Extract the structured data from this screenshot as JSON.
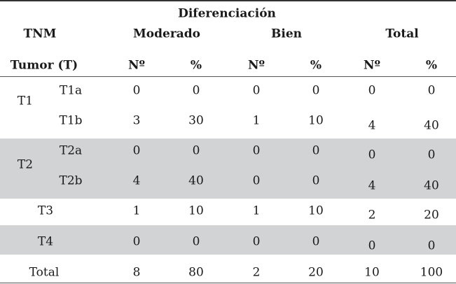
{
  "header": {
    "group_title": "Diferenciación",
    "tnm": "TNM",
    "moderado": "Moderado",
    "bien": "Bien",
    "total": "Total",
    "tumor": "Tumor (T)",
    "no": "Nº",
    "pct": "%"
  },
  "rows": {
    "t1": {
      "label": "T1",
      "t1a": "T1a",
      "t1b": "T1b",
      "a": [
        "0",
        "0",
        "0",
        "0",
        "0",
        "0"
      ],
      "b": [
        "3",
        "30",
        "1",
        "10",
        "4",
        "40"
      ]
    },
    "t2": {
      "label": "T2",
      "t2a": "T2a",
      "t2b": "T2b",
      "a": [
        "0",
        "0",
        "0",
        "0",
        "0",
        "0"
      ],
      "b": [
        "4",
        "40",
        "0",
        "0",
        "4",
        "40"
      ]
    },
    "t3": {
      "label": "T3",
      "v": [
        "1",
        "10",
        "1",
        "10",
        "2",
        "20"
      ]
    },
    "t4": {
      "label": "T4",
      "v": [
        "0",
        "0",
        "0",
        "0",
        "0",
        "0"
      ]
    },
    "total": {
      "label": "Total",
      "v": [
        "8",
        "80",
        "2",
        "20",
        "10",
        "100"
      ]
    }
  }
}
